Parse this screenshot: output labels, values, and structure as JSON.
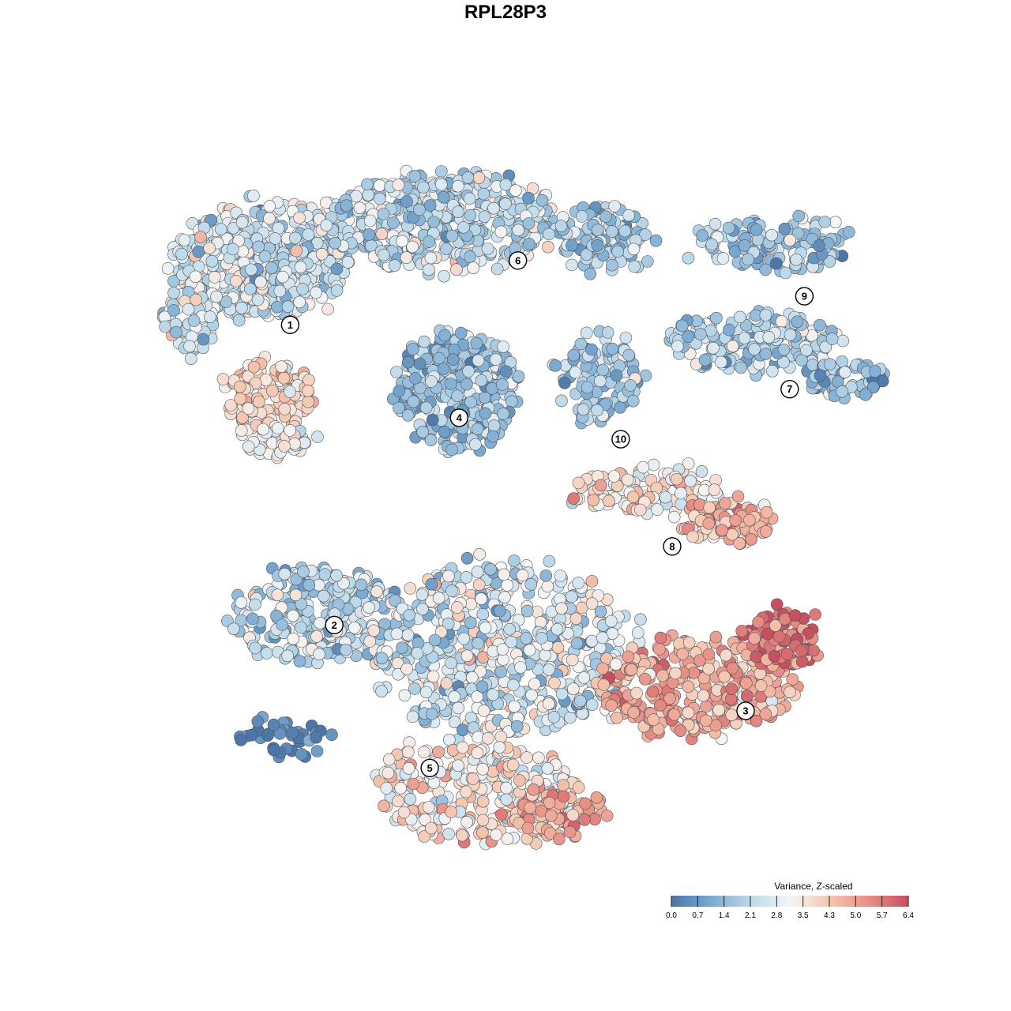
{
  "chart_data": {
    "type": "scatter",
    "title": "RPL28P3",
    "xlabel": "",
    "ylabel": "",
    "grid": false,
    "legend": {
      "title": "Variance, Z-scaled",
      "placement": "bottom-right",
      "ticks": [
        "0.0",
        "0.7",
        "1.4",
        "2.1",
        "2.8",
        "3.5",
        "4.3",
        "5.0",
        "5.7",
        "6.4"
      ],
      "range": [
        0,
        6.4
      ],
      "colors": [
        "#4a76a8",
        "#7aa9d2",
        "#bcd9ea",
        "#f5f5f5",
        "#f5c7b0",
        "#e88f86",
        "#c6505f"
      ]
    },
    "clusters": [
      {
        "label": "1",
        "x": 18,
        "y": 75,
        "value": 2.6
      },
      {
        "label": "2",
        "x": 24,
        "y": 33,
        "value": 2.2
      },
      {
        "label": "3",
        "x": 80,
        "y": 21,
        "value": 4.6
      },
      {
        "label": "4",
        "x": 41,
        "y": 62,
        "value": 1.6
      },
      {
        "label": "5",
        "x": 37,
        "y": 13,
        "value": 3.6
      },
      {
        "label": "6",
        "x": 49,
        "y": 84,
        "value": 2.2
      },
      {
        "label": "7",
        "x": 86,
        "y": 66,
        "value": 2.1
      },
      {
        "label": "8",
        "x": 70,
        "y": 44,
        "value": 3.5
      },
      {
        "label": "9",
        "x": 88,
        "y": 79,
        "value": 1.9
      },
      {
        "label": "10",
        "x": 63,
        "y": 59,
        "value": 1.9
      }
    ]
  }
}
